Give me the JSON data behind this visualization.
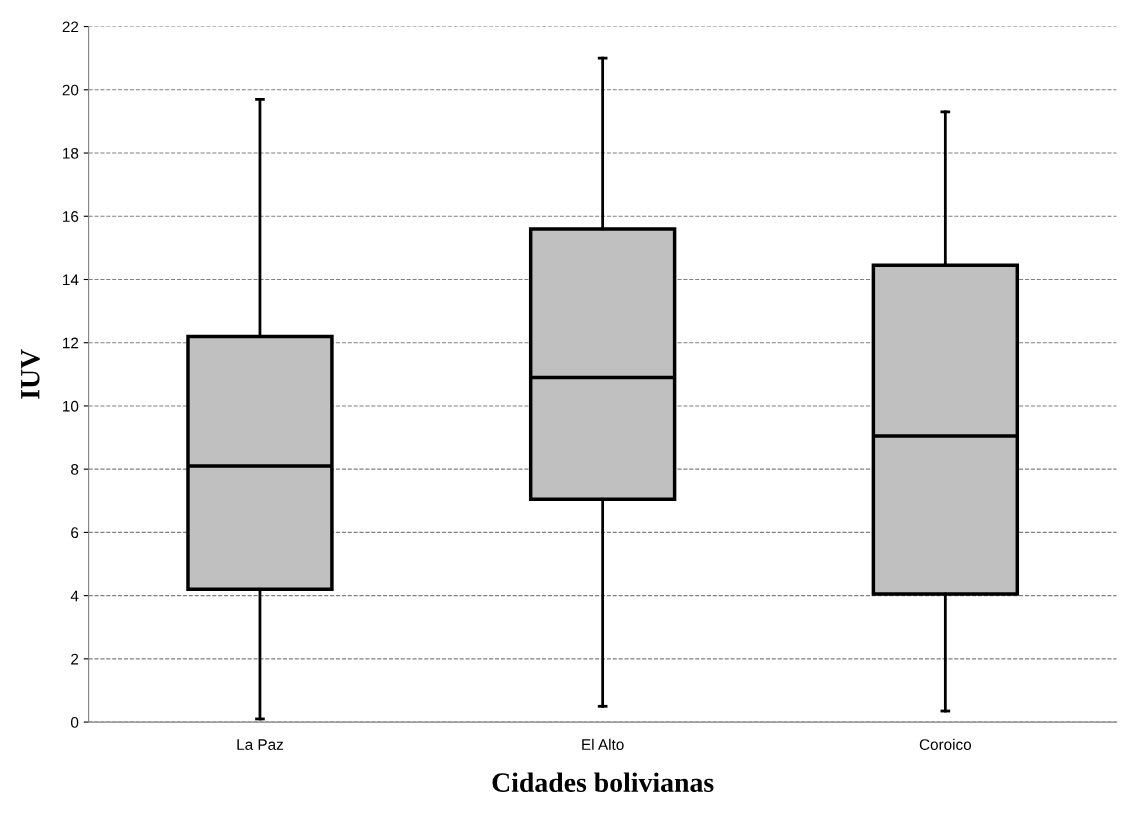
{
  "chart_data": {
    "type": "box",
    "xlabel": "Cidades bolivianas",
    "ylabel": "IUV",
    "categories": [
      "La Paz",
      "El Alto",
      "Coroico"
    ],
    "boxes": [
      {
        "low": 0.1,
        "q1": 4.2,
        "median": 8.1,
        "q3": 12.2,
        "high": 19.7
      },
      {
        "low": 0.5,
        "q1": 7.05,
        "median": 10.9,
        "q3": 15.6,
        "high": 21.0
      },
      {
        "low": 0.35,
        "q1": 4.05,
        "median": 9.05,
        "q3": 14.45,
        "high": 19.3
      }
    ],
    "color": "#c0c0c0",
    "ylim": [
      0,
      22
    ],
    "yticks": [
      0,
      2,
      4,
      6,
      8,
      10,
      12,
      14,
      16,
      18,
      20,
      22
    ],
    "grid": "y"
  }
}
